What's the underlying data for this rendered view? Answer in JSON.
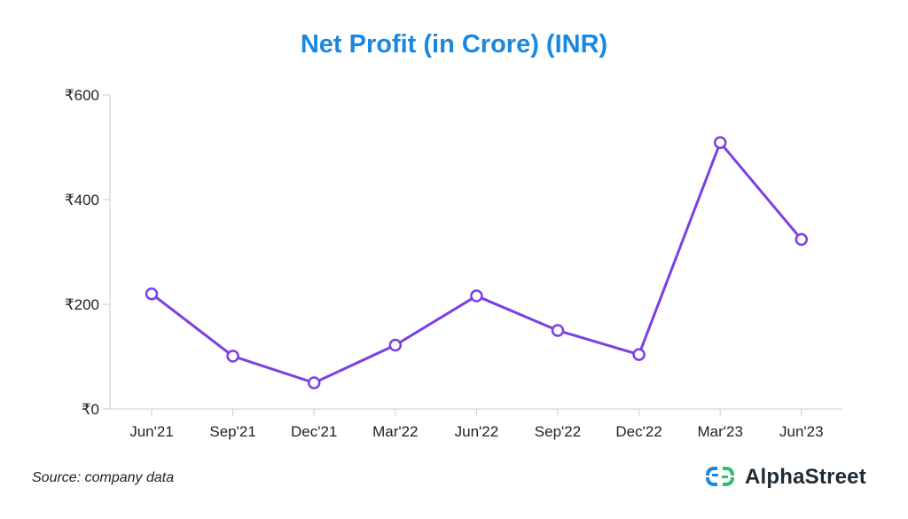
{
  "chart_data": {
    "type": "line",
    "title": "Net Profit (in Crore) (INR)",
    "categories": [
      "Jun'21",
      "Sep'21",
      "Dec'21",
      "Mar'22",
      "Jun'22",
      "Sep'22",
      "Dec'22",
      "Mar'23",
      "Jun'23"
    ],
    "series": [
      {
        "values": [
          220,
          101,
          50,
          122,
          216,
          150,
          104,
          509,
          324
        ]
      }
    ],
    "ylim": [
      0,
      600
    ],
    "yticks": [
      0,
      200,
      400,
      600
    ],
    "ytick_prefix": "₹",
    "grid": false,
    "line_color": "#7b3fe4",
    "marker_fill": "#ffffff"
  },
  "source": "Source: company data",
  "brand": {
    "name": "AlphaStreet",
    "icon": "alphastreet-logo-icon",
    "colors": [
      "#1a88e0",
      "#2fbf71"
    ]
  }
}
